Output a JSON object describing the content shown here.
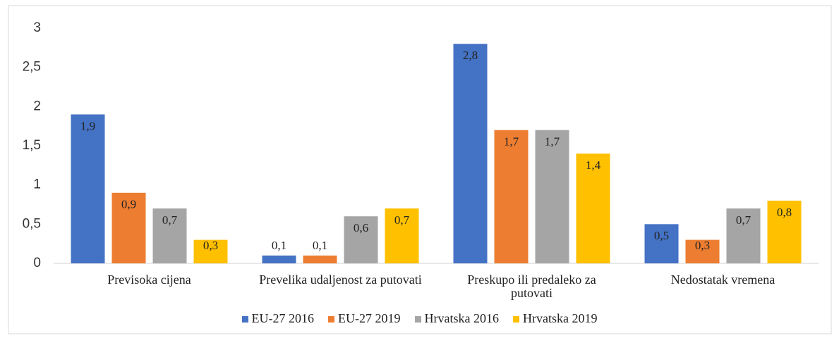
{
  "chart_data": {
    "type": "bar",
    "categories": [
      "Previsoka cijena",
      "Prevelika udaljenost za putovati",
      "Preskupo ili predaleko za putovati",
      "Nedostatak vremena"
    ],
    "series": [
      {
        "name": "EU-27 2016",
        "color": "#4472c4",
        "values": [
          1.9,
          0.1,
          2.8,
          0.5
        ],
        "value_labels": [
          "1,9",
          "0,1",
          "2,8",
          "0,5"
        ]
      },
      {
        "name": "EU-27 2019",
        "color": "#ed7d31",
        "values": [
          0.9,
          0.1,
          1.7,
          0.3
        ],
        "value_labels": [
          "0,9",
          "0,1",
          "1,7",
          "0,3"
        ]
      },
      {
        "name": "Hrvatska 2016",
        "color": "#a5a5a5",
        "values": [
          0.7,
          0.6,
          1.7,
          0.7
        ],
        "value_labels": [
          "0,7",
          "0,6",
          "1,7",
          "0,7"
        ]
      },
      {
        "name": "Hrvatska 2019",
        "color": "#ffc000",
        "values": [
          0.3,
          0.7,
          1.4,
          0.8
        ],
        "value_labels": [
          "0,3",
          "0,7",
          "1,4",
          "0,8"
        ]
      }
    ],
    "ylim": [
      0,
      3
    ],
    "yticks": [
      0,
      {
        "value": 0.5,
        "label": "0,5"
      },
      1,
      {
        "value": 1.5,
        "label": "1,5"
      },
      2,
      {
        "value": 2.5,
        "label": "2,5"
      },
      3
    ],
    "grid": false,
    "legend": "bottom"
  }
}
